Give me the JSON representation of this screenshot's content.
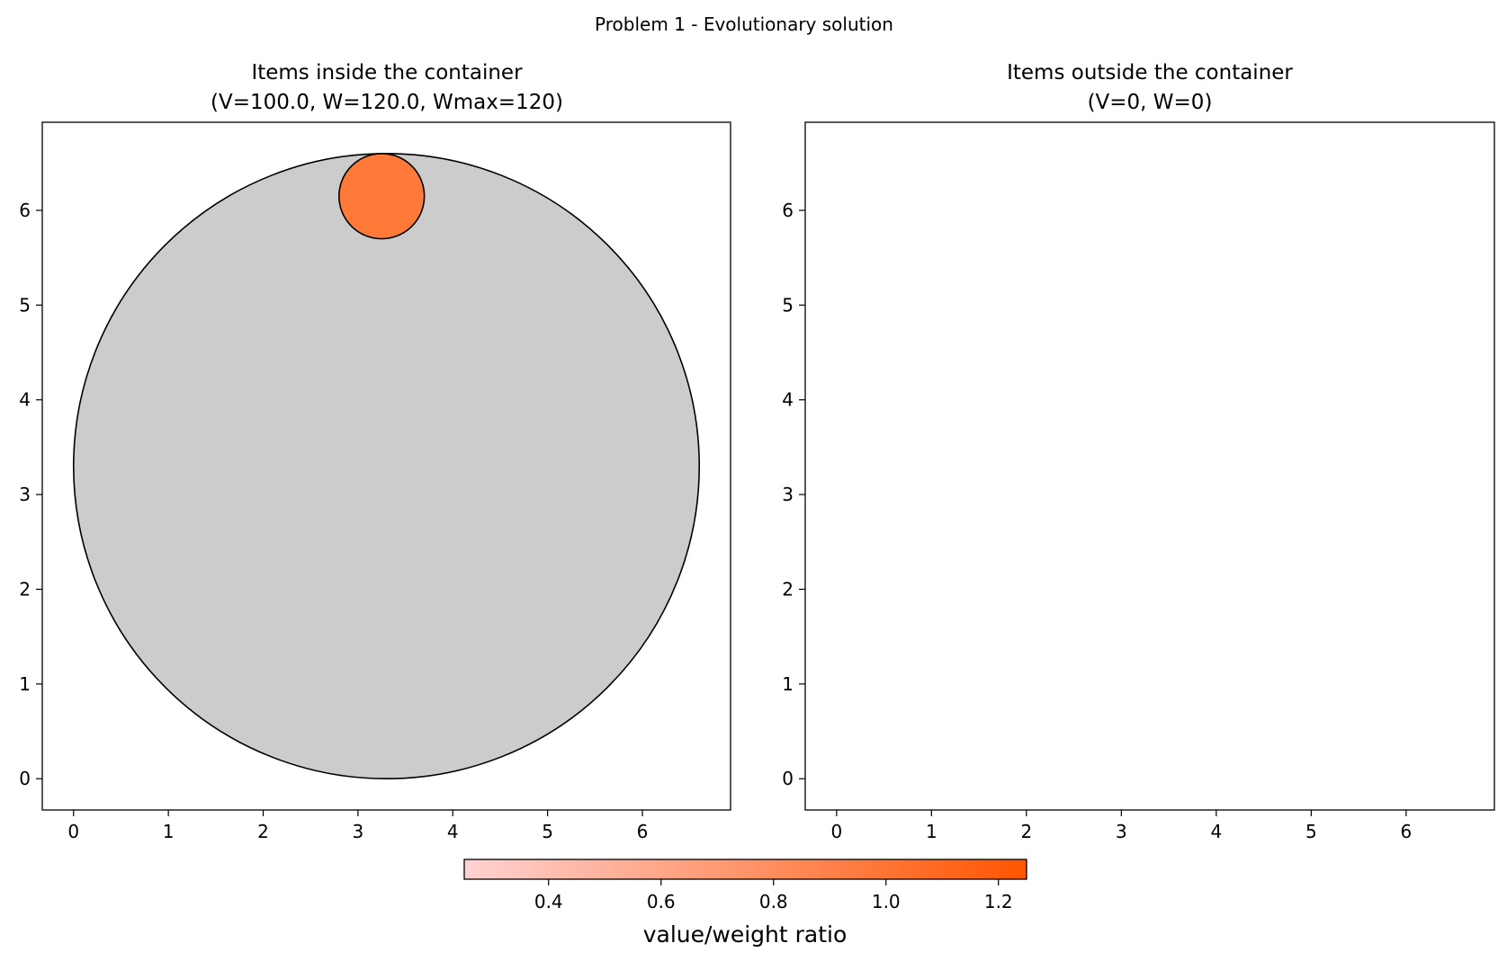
{
  "figure_title": "Problem 1 - Evolutionary solution",
  "chart_data": [
    {
      "type": "scatter",
      "title_line1": "Items inside the container",
      "title_line2": "(V=100.0, W=120.0, Wmax=120)",
      "xlim": [
        -0.33,
        6.93
      ],
      "ylim": [
        -0.33,
        6.93
      ],
      "xticks": [
        0,
        1,
        2,
        3,
        4,
        5,
        6
      ],
      "yticks": [
        0,
        1,
        2,
        3,
        4,
        5,
        6
      ],
      "container": {
        "cx": 3.3,
        "cy": 3.3,
        "r": 3.3,
        "color": "#cccccc"
      },
      "items": [
        {
          "cx": 3.25,
          "cy": 6.15,
          "r": 0.45,
          "ratio": 0.833,
          "color": "#ff7a38"
        }
      ]
    },
    {
      "type": "scatter",
      "title_line1": "Items outside the container",
      "title_line2": "(V=0, W=0)",
      "xlim": [
        -0.33,
        6.93
      ],
      "ylim": [
        -0.33,
        6.93
      ],
      "xticks": [
        0,
        1,
        2,
        3,
        4,
        5,
        6
      ],
      "yticks": [
        0,
        1,
        2,
        3,
        4,
        5,
        6
      ],
      "items": []
    }
  ],
  "colorbar": {
    "label": "value/weight ratio",
    "range": [
      0.25,
      1.25
    ],
    "ticks": [
      0.4,
      0.6,
      0.8,
      1.0,
      1.2
    ],
    "tick_labels": [
      "0.4",
      "0.6",
      "0.8",
      "1.0",
      "1.2"
    ],
    "color_low": "#ffd2d2",
    "color_high": "#ff5500"
  }
}
